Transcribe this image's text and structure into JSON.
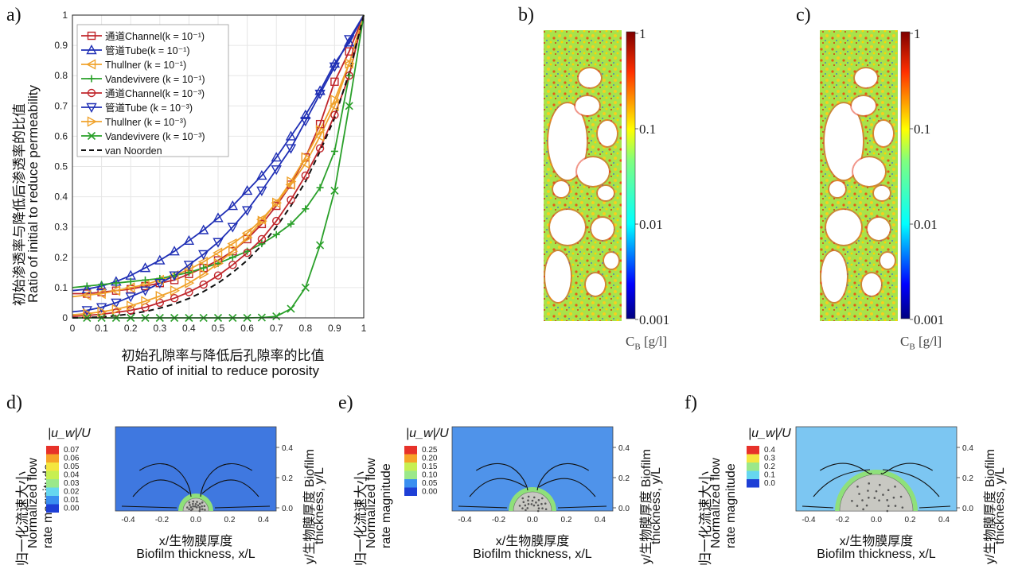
{
  "panels": {
    "a": "a)",
    "b": "b)",
    "c": "c)",
    "d": "d)",
    "e": "e)",
    "f": "f)"
  },
  "chart_a": {
    "ylabel_cn": "初始渗透率与降低后渗透率的比值",
    "ylabel_en": "Ratio of initial to reduce permeability",
    "xlabel_cn": "初始孔隙率与降低后孔隙率的比值",
    "xlabel_en": "Ratio of initial to reduce porosity",
    "xticks": [
      "0",
      "0.1",
      "0.2",
      "0.3",
      "0.4",
      "0.5",
      "0.6",
      "0.7",
      "0.8",
      "0.9",
      "1"
    ],
    "yticks": [
      "0",
      "0.1",
      "0.2",
      "0.3",
      "0.4",
      "0.5",
      "0.6",
      "0.7",
      "0.8",
      "0.9",
      "1"
    ]
  },
  "legend": [
    {
      "label": "通道Channel(k = 10⁻¹)",
      "color": "#c0262b",
      "marker": "square"
    },
    {
      "label": "管道Tube(k = 10⁻¹)",
      "color": "#1f2fb5",
      "marker": "triangle-up"
    },
    {
      "label": "Thullner (k = 10⁻¹)",
      "color": "#f0a22b",
      "marker": "triangle-left"
    },
    {
      "label": "Vandevivere (k = 10⁻¹)",
      "color": "#2aa02a",
      "marker": "plus"
    },
    {
      "label": "通道Channel(k = 10⁻³)",
      "color": "#c0262b",
      "marker": "circle"
    },
    {
      "label": "管道Tube (k = 10⁻³)",
      "color": "#1f2fb5",
      "marker": "triangle-down"
    },
    {
      "label": "Thullner (k = 10⁻³)",
      "color": "#f0a22b",
      "marker": "triangle-right"
    },
    {
      "label": "Vandevivere (k = 10⁻³)",
      "color": "#2aa02a",
      "marker": "x"
    },
    {
      "label": "van Noorden",
      "color": "#111111",
      "marker": "dash"
    }
  ],
  "chart_data": [
    {
      "type": "line",
      "xlabel": "Ratio of initial to reduce porosity",
      "ylabel": "Ratio of initial to reduce permeability",
      "xlim": [
        0,
        1
      ],
      "ylim": [
        0,
        1
      ],
      "x": [
        0,
        0.05,
        0.1,
        0.15,
        0.2,
        0.25,
        0.3,
        0.35,
        0.4,
        0.45,
        0.5,
        0.55,
        0.6,
        0.65,
        0.7,
        0.75,
        0.8,
        0.85,
        0.9,
        0.95,
        1
      ],
      "series": [
        {
          "name": "通道Channel(k = 10⁻¹)",
          "values": [
            0.08,
            0.08,
            0.085,
            0.09,
            0.095,
            0.105,
            0.115,
            0.125,
            0.145,
            0.165,
            0.19,
            0.22,
            0.26,
            0.31,
            0.37,
            0.44,
            0.53,
            0.64,
            0.78,
            0.88,
            1
          ]
        },
        {
          "name": "管道Tube(k = 10⁻¹)",
          "values": [
            0.09,
            0.095,
            0.105,
            0.12,
            0.14,
            0.165,
            0.19,
            0.22,
            0.255,
            0.29,
            0.33,
            0.37,
            0.42,
            0.47,
            0.53,
            0.6,
            0.67,
            0.75,
            0.84,
            0.91,
            1
          ]
        },
        {
          "name": "Thullner (k = 10⁻¹)",
          "values": [
            0.07,
            0.075,
            0.08,
            0.09,
            0.1,
            0.11,
            0.125,
            0.14,
            0.16,
            0.185,
            0.215,
            0.245,
            0.28,
            0.325,
            0.38,
            0.44,
            0.51,
            0.6,
            0.7,
            0.84,
            1
          ]
        },
        {
          "name": "Vandevivere (k = 10⁻¹)",
          "values": [
            0.1,
            0.105,
            0.11,
            0.115,
            0.12,
            0.125,
            0.13,
            0.14,
            0.15,
            0.165,
            0.18,
            0.2,
            0.22,
            0.245,
            0.275,
            0.31,
            0.36,
            0.43,
            0.55,
            0.8,
            1
          ]
        },
        {
          "name": "通道Channel(k = 10⁻³)",
          "values": [
            0.005,
            0.008,
            0.012,
            0.018,
            0.025,
            0.035,
            0.05,
            0.065,
            0.085,
            0.11,
            0.14,
            0.175,
            0.215,
            0.26,
            0.32,
            0.39,
            0.47,
            0.56,
            0.67,
            0.8,
            1
          ]
        },
        {
          "name": "管道Tube (k = 10⁻³)",
          "values": [
            0.02,
            0.025,
            0.035,
            0.05,
            0.07,
            0.09,
            0.115,
            0.14,
            0.175,
            0.21,
            0.25,
            0.3,
            0.355,
            0.42,
            0.49,
            0.56,
            0.65,
            0.74,
            0.83,
            0.92,
            1
          ]
        },
        {
          "name": "Thullner (k = 10⁻³)",
          "values": [
            0.01,
            0.014,
            0.02,
            0.028,
            0.04,
            0.055,
            0.072,
            0.09,
            0.115,
            0.145,
            0.18,
            0.22,
            0.265,
            0.32,
            0.38,
            0.45,
            0.53,
            0.62,
            0.72,
            0.84,
            1
          ]
        },
        {
          "name": "Vandevivere (k = 10⁻³)",
          "values": [
            0,
            0,
            0,
            0,
            0,
            0,
            0,
            0,
            0,
            0,
            0,
            0,
            0,
            0.001,
            0.005,
            0.03,
            0.1,
            0.24,
            0.42,
            0.7,
            1
          ]
        },
        {
          "name": "van Noorden",
          "values": [
            0,
            0.001,
            0.003,
            0.007,
            0.013,
            0.021,
            0.032,
            0.046,
            0.064,
            0.087,
            0.115,
            0.15,
            0.19,
            0.24,
            0.3,
            0.37,
            0.45,
            0.55,
            0.66,
            0.81,
            1
          ]
        }
      ]
    }
  ],
  "colorbar_bc": {
    "ticks": [
      "1",
      "0.1",
      "0.01",
      "0.001"
    ],
    "label": "C",
    "label_sub": "B",
    "label_unit": "[g/l]"
  },
  "flow_panels": [
    {
      "id": "d",
      "cb_title": "|u_w|/U",
      "cb_ticks": [
        "0.07",
        "0.06",
        "0.05",
        "0.04",
        "0.03",
        "0.02",
        "0.01",
        "0.00"
      ],
      "xticks": [
        "-0.4",
        "-0.2",
        "0.0",
        "0.2",
        "0.4"
      ],
      "yticks": [
        "0.4",
        "0.2",
        "0.0"
      ],
      "ylabel_left_cn": "归一化流速大小",
      "ylabel_left_en1": "Normalized flow",
      "ylabel_left_en2": "rate magnitude",
      "ylabel_right_1": "y/生物膜厚度 Biofilm",
      "ylabel_right_2": "thickness, y/L",
      "xlabel_cn": "x/生物膜厚度",
      "xlabel_en": "Biofilm thickness, x/L",
      "bg": "#3f78e0"
    },
    {
      "id": "e",
      "cb_title": "|u_w|/U",
      "cb_ticks": [
        "0.25",
        "0.20",
        "0.15",
        "0.10",
        "0.05",
        "0.00"
      ],
      "xticks": [
        "-0.4",
        "-0.2",
        "0.0",
        "0.2",
        "0.4"
      ],
      "yticks": [
        "0.4",
        "0.2",
        "0.0"
      ],
      "ylabel_left_cn": "归一化流速大小",
      "ylabel_left_en1": "Normalized flow",
      "ylabel_left_en2": "rate magnitude",
      "ylabel_right_1": "y/生物膜厚度 Biofilm",
      "ylabel_right_2": "thickness, y/L",
      "xlabel_cn": "x/生物膜厚度",
      "xlabel_en": "Biofilm thickness, x/L",
      "bg": "#4f93ea"
    },
    {
      "id": "f",
      "cb_title": "|u_w|/U",
      "cb_ticks": [
        "0.4",
        "0.3",
        "0.2",
        "0.1",
        "0.0"
      ],
      "xticks": [
        "-0.4",
        "-0.2",
        "0.0",
        "0.2",
        "0.4"
      ],
      "yticks": [
        "0.4",
        "0.2",
        "0.0"
      ],
      "ylabel_left_cn": "归一化流速大小",
      "ylabel_left_en1": "Normalized flow",
      "ylabel_left_en2": "rate magnitude",
      "ylabel_right_1": "y/生物膜厚度 Biofilm",
      "ylabel_right_2": "thickness, y/L",
      "xlabel_cn": "x/生物膜厚度",
      "xlabel_en": "Biofilm thickness, x/L",
      "bg": "#7cc6f2"
    }
  ]
}
